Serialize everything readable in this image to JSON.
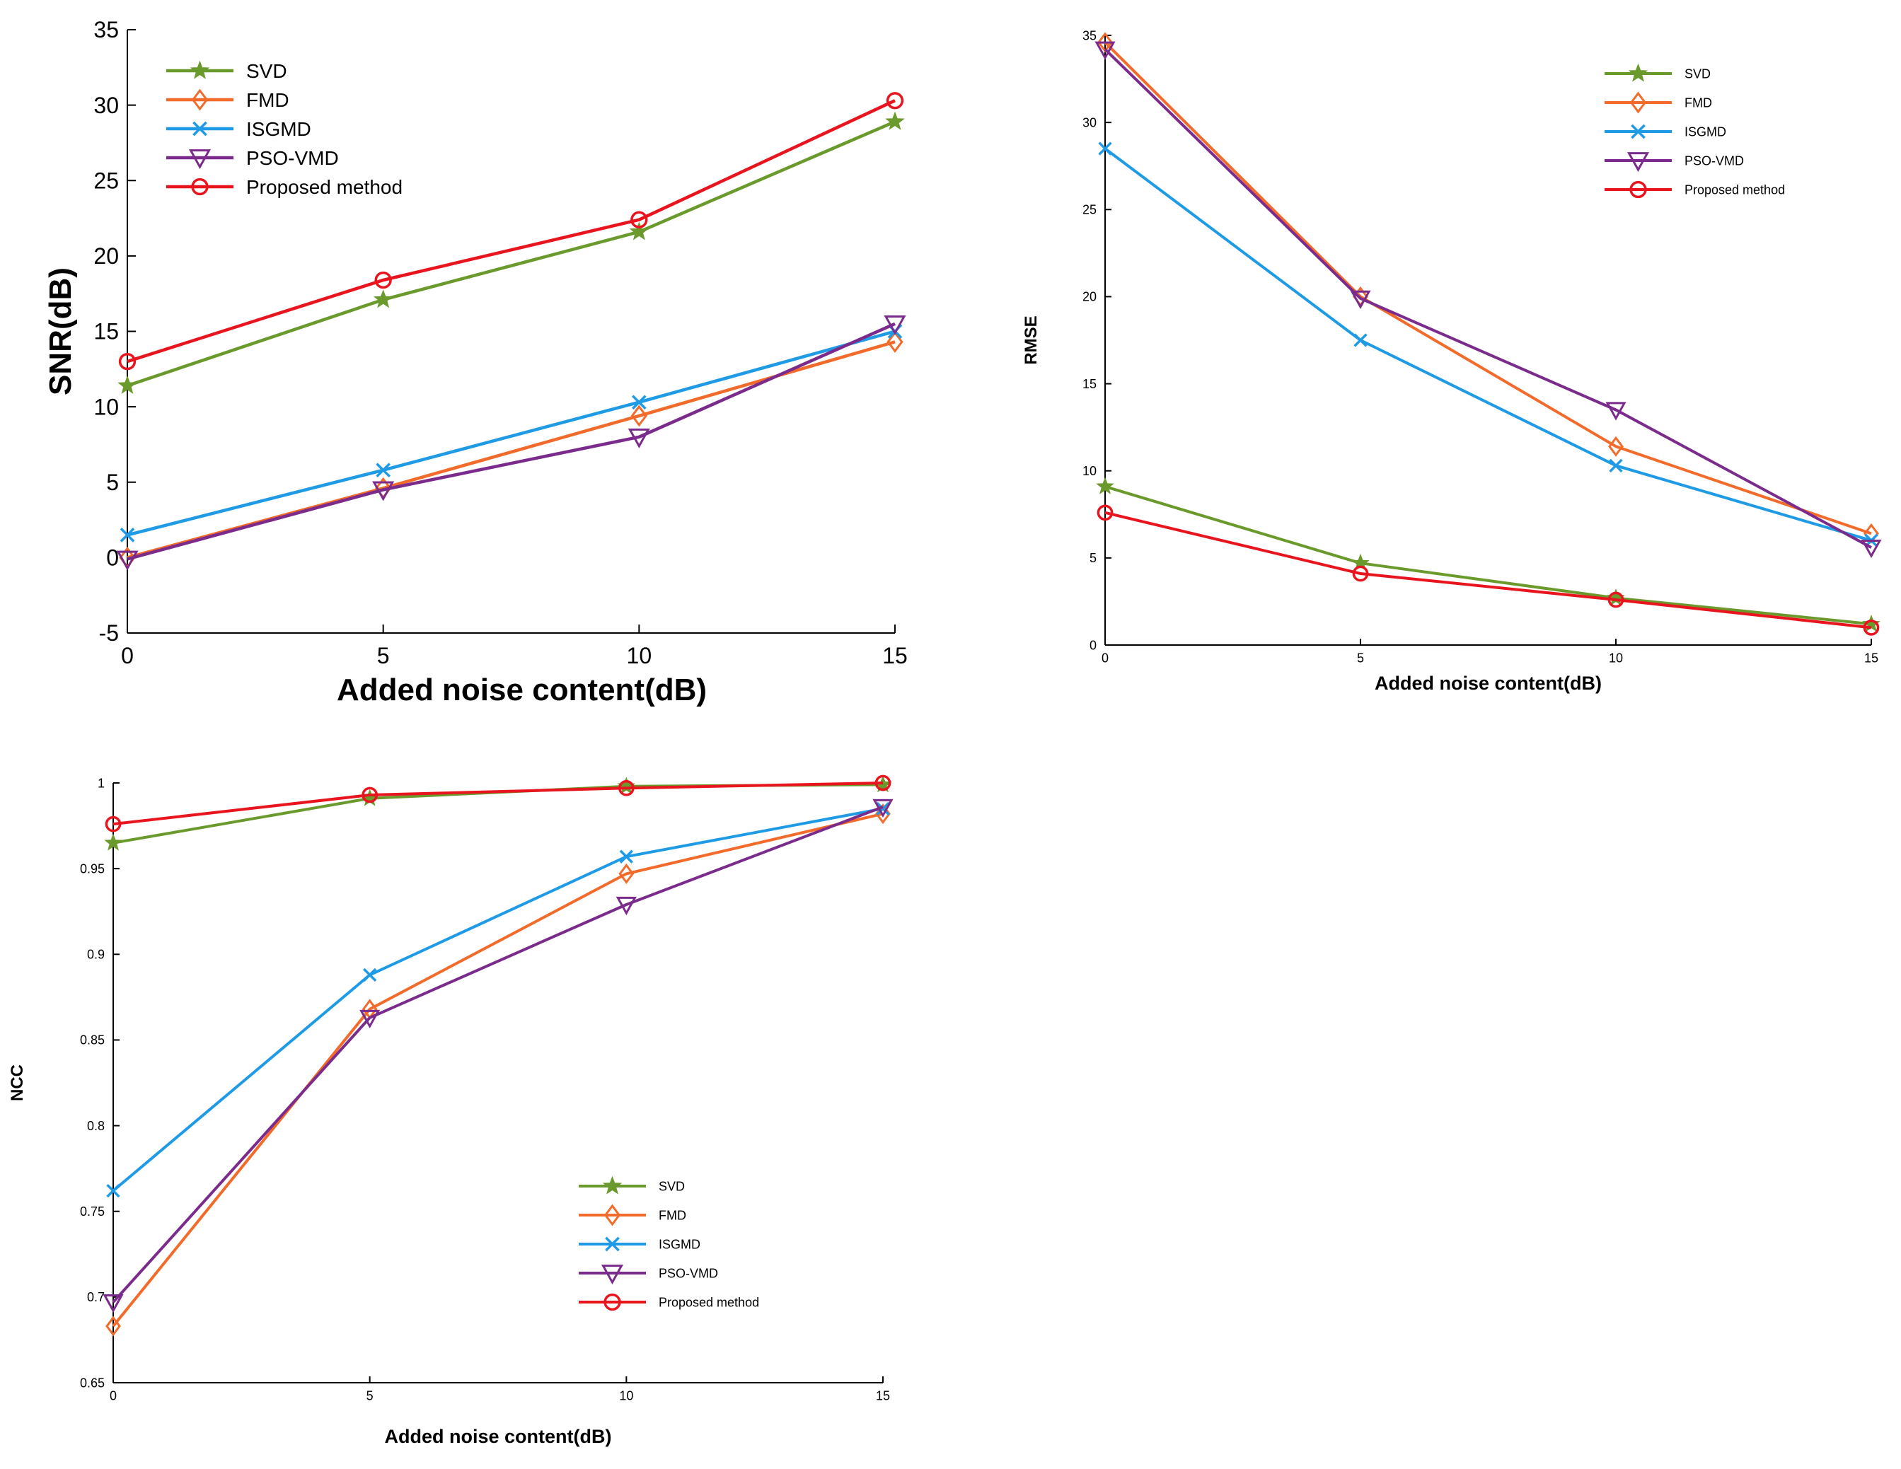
{
  "chart_data": [
    {
      "type": "line",
      "id": "snr",
      "xlabel": "Added noise content(dB)",
      "ylabel": "SNR(dB)",
      "xlim": [
        0,
        15
      ],
      "ylim": [
        -5,
        35
      ],
      "xticks": [
        0,
        5,
        10,
        15
      ],
      "yticks": [
        -5,
        0,
        5,
        10,
        15,
        20,
        25,
        30,
        35
      ],
      "legend_position": "top-left",
      "x": [
        0,
        5,
        10,
        15
      ],
      "series": [
        {
          "name": "SVD",
          "values": [
            11.4,
            17.1,
            21.6,
            28.9
          ],
          "color": "#6a9a2c",
          "marker": "star"
        },
        {
          "name": "FMD",
          "values": [
            0.0,
            4.6,
            9.4,
            14.3
          ],
          "color": "#f26b2a",
          "marker": "diamond"
        },
        {
          "name": "ISGMD",
          "values": [
            1.5,
            5.8,
            10.3,
            15.0
          ],
          "color": "#1f9be6",
          "marker": "x"
        },
        {
          "name": "PSO-VMD",
          "values": [
            -0.1,
            4.5,
            8.0,
            15.5
          ],
          "color": "#7b2b8c",
          "marker": "triangle-down"
        },
        {
          "name": "Proposed method",
          "values": [
            13.0,
            18.4,
            22.4,
            30.3
          ],
          "color": "#e8141e",
          "marker": "circle"
        }
      ]
    },
    {
      "type": "line",
      "id": "rmse",
      "xlabel": "Added noise content(dB)",
      "ylabel": "RMSE",
      "xlim": [
        0,
        15
      ],
      "ylim": [
        0,
        35
      ],
      "xticks": [
        0,
        5,
        10,
        15
      ],
      "yticks": [
        0,
        5,
        10,
        15,
        20,
        25,
        30,
        35
      ],
      "legend_position": "top-right",
      "x": [
        0,
        5,
        10,
        15
      ],
      "series": [
        {
          "name": "SVD",
          "values": [
            9.1,
            4.7,
            2.7,
            1.2
          ],
          "color": "#6a9a2c",
          "marker": "star"
        },
        {
          "name": "FMD",
          "values": [
            34.6,
            20.0,
            11.4,
            6.4
          ],
          "color": "#f26b2a",
          "marker": "diamond"
        },
        {
          "name": "ISGMD",
          "values": [
            28.5,
            17.5,
            10.3,
            6.0
          ],
          "color": "#1f9be6",
          "marker": "x"
        },
        {
          "name": "PSO-VMD",
          "values": [
            34.2,
            19.9,
            13.5,
            5.6
          ],
          "color": "#7b2b8c",
          "marker": "triangle-down"
        },
        {
          "name": "Proposed method",
          "values": [
            7.6,
            4.1,
            2.6,
            1.0
          ],
          "color": "#e8141e",
          "marker": "circle"
        }
      ]
    },
    {
      "type": "line",
      "id": "ncc",
      "xlabel": "Added noise content(dB)",
      "ylabel": "NCC",
      "xlim": [
        0,
        15
      ],
      "ylim": [
        0.65,
        1
      ],
      "xticks": [
        0,
        5,
        10,
        15
      ],
      "yticks": [
        0.65,
        0.7,
        0.75,
        0.8,
        0.85,
        0.9,
        0.95,
        1
      ],
      "ytick_labels": [
        "0.65",
        "0.7",
        "0.75",
        "0.8",
        "0.85",
        "0.9",
        "0.95",
        "1"
      ],
      "legend_position": "lower-middle",
      "x": [
        0,
        5,
        10,
        15
      ],
      "series": [
        {
          "name": "SVD",
          "values": [
            0.965,
            0.991,
            0.998,
            0.999
          ],
          "color": "#6a9a2c",
          "marker": "star"
        },
        {
          "name": "FMD",
          "values": [
            0.683,
            0.868,
            0.947,
            0.982
          ],
          "color": "#f26b2a",
          "marker": "diamond"
        },
        {
          "name": "ISGMD",
          "values": [
            0.762,
            0.888,
            0.957,
            0.985
          ],
          "color": "#1f9be6",
          "marker": "x"
        },
        {
          "name": "PSO-VMD",
          "values": [
            0.697,
            0.863,
            0.929,
            0.986
          ],
          "color": "#7b2b8c",
          "marker": "triangle-down"
        },
        {
          "name": "Proposed method",
          "values": [
            0.976,
            0.993,
            0.997,
            1.0
          ],
          "color": "#e8141e",
          "marker": "circle"
        }
      ]
    }
  ]
}
